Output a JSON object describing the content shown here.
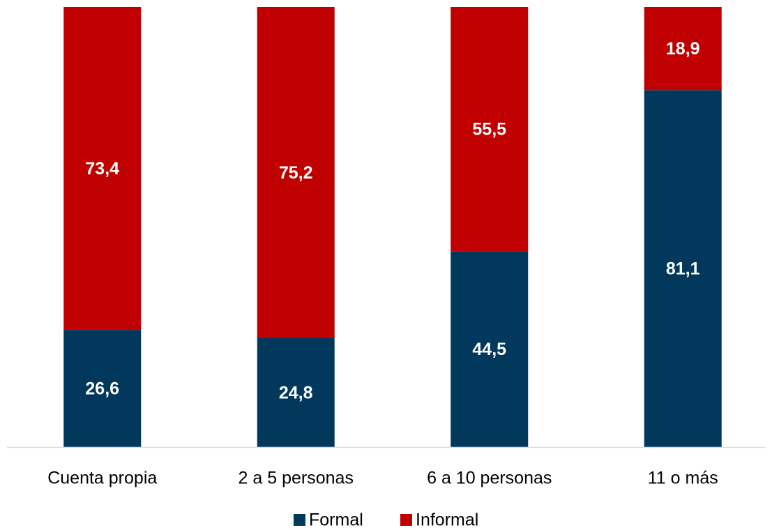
{
  "chart_data": {
    "type": "stacked-bar",
    "categories": [
      "Cuenta propia",
      "2 a 5 personas",
      "6 a 10 personas",
      "11 o más"
    ],
    "series": [
      {
        "name": "Formal",
        "color": "#03385d",
        "values": [
          26.6,
          24.8,
          44.5,
          81.1
        ],
        "value_labels": [
          "26,6",
          "24,8",
          "44,5",
          "81,1"
        ]
      },
      {
        "name": "Informal",
        "color": "#c00000",
        "values": [
          73.4,
          75.2,
          55.5,
          18.9
        ],
        "value_labels": [
          "73,4",
          "75,2",
          "55,5",
          "18,9"
        ]
      }
    ],
    "ylim": [
      0,
      100
    ]
  }
}
